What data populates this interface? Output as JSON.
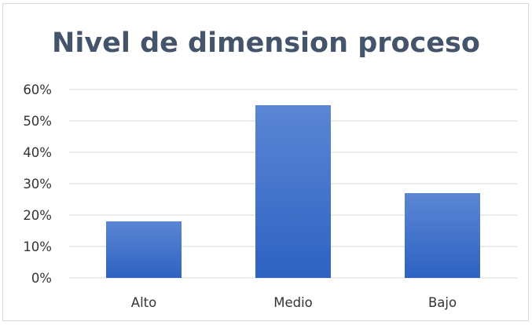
{
  "chart_data": {
    "type": "bar",
    "title": "Nivel de dimension proceso",
    "xlabel": "",
    "ylabel": "",
    "categories": [
      "Alto",
      "Medio",
      "Bajo"
    ],
    "values": [
      18,
      55,
      27
    ],
    "ylim": [
      0,
      60
    ],
    "y_ticks": [
      "0%",
      "10%",
      "20%",
      "30%",
      "40%",
      "50%",
      "60%"
    ],
    "y_tick_values": [
      0,
      10,
      20,
      30,
      40,
      50,
      60
    ],
    "grid": true,
    "legend": "none",
    "colors": {
      "bar_top": "#5b86d4",
      "bar_bottom": "#2e62c2",
      "grid": "#d9d9d9",
      "title": "#44546a"
    }
  }
}
